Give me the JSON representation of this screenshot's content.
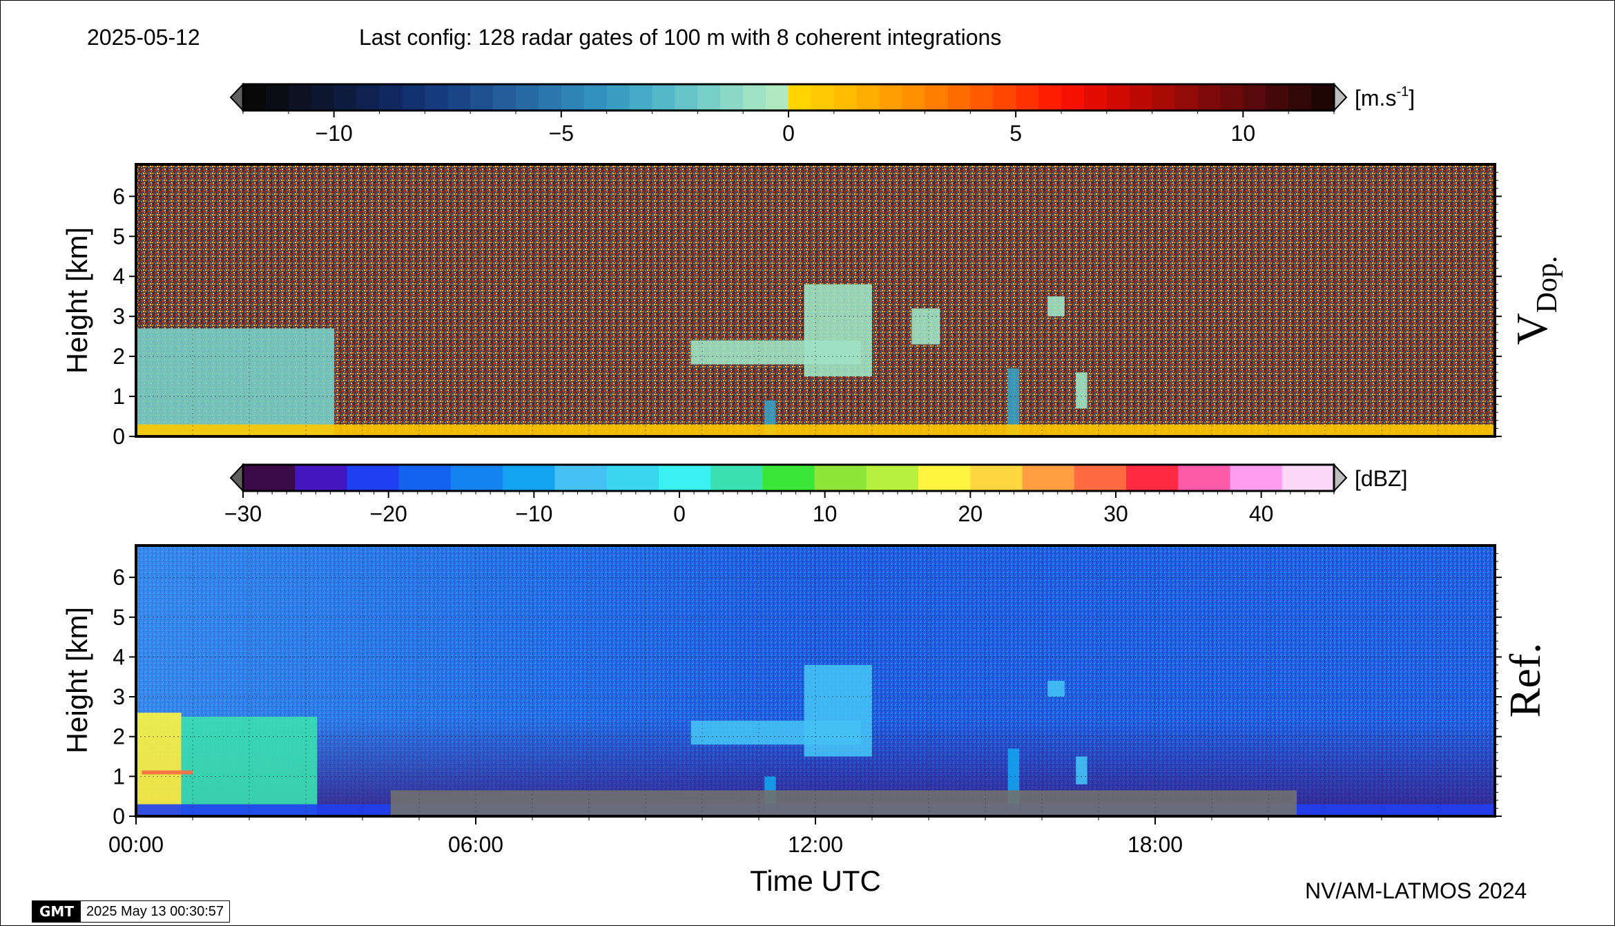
{
  "header": {
    "date": "2025-05-12",
    "config": "Last config: 128 radar gates of 100 m with 8 coherent integrations"
  },
  "footer": {
    "credit": "NV/AM-LATMOS 2024",
    "gmt_logo": "GMT",
    "timestamp": "2025 May 13 00:30:57"
  },
  "colors": {
    "vdop_colorbar": [
      "#080808",
      "#0b0d14",
      "#0c1222",
      "#0d1730",
      "#0e1c40",
      "#0f2150",
      "#10285f",
      "#12316f",
      "#153a7d",
      "#1a4488",
      "#1e5092",
      "#235d9b",
      "#2769a5",
      "#2b76ae",
      "#2f84b6",
      "#3391bd",
      "#3a9ec2",
      "#45abc6",
      "#55b8c8",
      "#66c4c9",
      "#78cfc8",
      "#8bd9c6",
      "#9ee2c3",
      "#b0e9bf",
      "#ffd400",
      "#ffc900",
      "#ffbc00",
      "#ffad00",
      "#ff9e00",
      "#ff8e00",
      "#ff7d00",
      "#ff6c00",
      "#ff5a00",
      "#ff4700",
      "#ff3300",
      "#ff1e00",
      "#f51000",
      "#e30c00",
      "#d00a00",
      "#bc0a02",
      "#a80a05",
      "#930a08",
      "#7f0a0a",
      "#6b090b",
      "#57090b",
      "#44080a",
      "#320707",
      "#200505"
    ],
    "ref_colorbar": [
      "#3b0a48",
      "#4416c0",
      "#1f3ff0",
      "#1463f0",
      "#1483f0",
      "#14a3f0",
      "#45c1f5",
      "#3ad6f0",
      "#3af0f0",
      "#3ae0b0",
      "#3ae63a",
      "#8ee63a",
      "#b8f040",
      "#fff540",
      "#ffd840",
      "#ff9e40",
      "#ff6a40",
      "#ff2a40",
      "#ff5aa8",
      "#ff9ef0",
      "#fcd8f8"
    ],
    "ground_clutter": "#707070"
  },
  "chart_data": [
    {
      "type": "heatmap",
      "panel_label": "V",
      "panel_label_subscript": "Dop.",
      "ylabel": "Height [km]",
      "ylim": [
        0,
        6.8
      ],
      "yticks": [
        "0",
        "1",
        "2",
        "3",
        "4",
        "5",
        "6"
      ],
      "xlim_hours": [
        0,
        24
      ],
      "grid": true,
      "colorbar": {
        "unit": "[m.s",
        "unit_superscript": "-1",
        "unit_close": "]",
        "range": [
          -12,
          12
        ],
        "ticks": [
          "−10",
          "−5",
          "0",
          "5",
          "10"
        ],
        "tick_values": [
          -10,
          -5,
          0,
          5,
          10
        ],
        "extend": "both"
      },
      "features": [
        {
          "t0": 0.0,
          "t1": 3.5,
          "h0": 0.0,
          "h1": 2.7,
          "value_ms": -2
        },
        {
          "t0": 9.8,
          "t1": 12.8,
          "h0": 1.8,
          "h1": 2.4,
          "value_ms": -0.8
        },
        {
          "t0": 11.8,
          "t1": 13.0,
          "h0": 1.5,
          "h1": 3.8,
          "value_ms": -0.8
        },
        {
          "t0": 13.7,
          "t1": 14.2,
          "h0": 2.3,
          "h1": 3.2,
          "value_ms": -0.8
        },
        {
          "t0": 16.1,
          "t1": 16.4,
          "h0": 3.0,
          "h1": 3.5,
          "value_ms": -0.8
        },
        {
          "t0": 16.6,
          "t1": 16.8,
          "h0": 0.7,
          "h1": 1.6,
          "value_ms": -0.8
        },
        {
          "t0": 11.1,
          "t1": 11.3,
          "h0": 0.0,
          "h1": 0.9,
          "value_ms": -4
        },
        {
          "t0": 15.4,
          "t1": 15.6,
          "h0": 0.0,
          "h1": 1.7,
          "value_ms": -4
        },
        {
          "t0": 0.0,
          "t1": 24.0,
          "h0": 0.0,
          "h1": 0.3,
          "value_ms": 0.5
        }
      ]
    },
    {
      "type": "heatmap",
      "panel_label": "Ref.",
      "ylabel": "Height [km]",
      "xlabel": "Time UTC",
      "ylim": [
        0,
        6.8
      ],
      "yticks": [
        "0",
        "1",
        "2",
        "3",
        "4",
        "5",
        "6"
      ],
      "xlim_hours": [
        0,
        24
      ],
      "xticks": [
        "00:00",
        "06:00",
        "12:00",
        "18:00"
      ],
      "xtick_hours": [
        0,
        6,
        12,
        18
      ],
      "grid": true,
      "colorbar": {
        "unit": "[dBZ]",
        "range": [
          -30,
          45
        ],
        "ticks": [
          "−30",
          "−20",
          "−10",
          "0",
          "10",
          "20",
          "30",
          "40"
        ],
        "tick_values": [
          -30,
          -20,
          -10,
          0,
          10,
          20,
          30,
          40
        ],
        "extend": "both"
      },
      "features": [
        {
          "t0": 0.0,
          "t1": 0.8,
          "h0": 0.0,
          "h1": 2.6,
          "value_dbz": 18
        },
        {
          "t0": 0.8,
          "t1": 3.2,
          "h0": 0.0,
          "h1": 2.5,
          "value_dbz": 5
        },
        {
          "t0": 0.1,
          "t1": 1.0,
          "h0": 1.05,
          "h1": 1.15,
          "value_dbz": 30
        },
        {
          "t0": 9.8,
          "t1": 12.8,
          "h0": 1.8,
          "h1": 2.4,
          "value_dbz": -8
        },
        {
          "t0": 11.8,
          "t1": 13.0,
          "h0": 1.5,
          "h1": 3.8,
          "value_dbz": -8
        },
        {
          "t0": 16.1,
          "t1": 16.4,
          "h0": 3.0,
          "h1": 3.4,
          "value_dbz": -8
        },
        {
          "t0": 16.6,
          "t1": 16.8,
          "h0": 0.8,
          "h1": 1.5,
          "value_dbz": -8
        },
        {
          "t0": 11.1,
          "t1": 11.3,
          "h0": 0.0,
          "h1": 1.0,
          "value_dbz": -12
        },
        {
          "t0": 15.4,
          "t1": 15.6,
          "h0": 0.0,
          "h1": 1.7,
          "value_dbz": -12
        },
        {
          "t0": 0.0,
          "t1": 24.0,
          "h0": 0.0,
          "h1": 0.3,
          "value_dbz": -20
        },
        {
          "t0": 4.5,
          "t1": 20.5,
          "h0": 0.0,
          "h1": 0.65,
          "value_dbz": "clutter"
        }
      ]
    }
  ]
}
